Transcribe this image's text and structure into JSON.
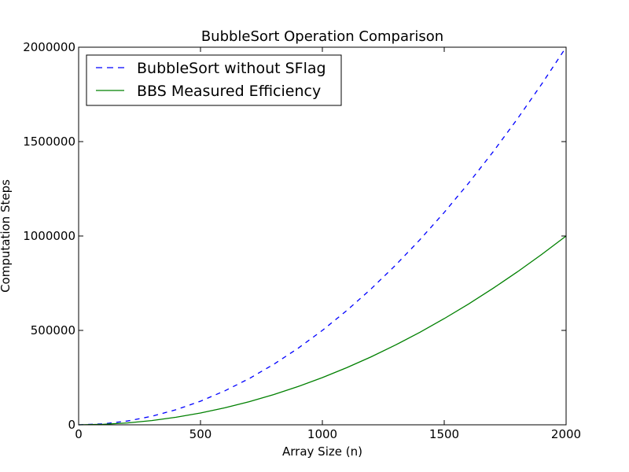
{
  "chart_data": {
    "type": "line",
    "title": "BubbleSort Operation Comparison",
    "xlabel": "Array Size (n)",
    "ylabel": "Computation Steps",
    "xlim": [
      0,
      2000
    ],
    "ylim": [
      0,
      2000000
    ],
    "x_ticks": [
      0,
      500,
      1000,
      1500,
      2000
    ],
    "y_ticks": [
      0,
      500000,
      1000000,
      1500000,
      2000000
    ],
    "x_tick_labels": [
      "0",
      "500",
      "1000",
      "1500",
      "2000"
    ],
    "y_tick_labels": [
      "0",
      "500000",
      "1000000",
      "1500000",
      "2000000"
    ],
    "grid": false,
    "legend_position": "top-left",
    "series": [
      {
        "name": "BubbleSort without SFlag",
        "style": "dashed",
        "color": "#0000ff",
        "x": [
          0,
          100,
          200,
          300,
          400,
          500,
          600,
          700,
          800,
          900,
          1000,
          1100,
          1200,
          1300,
          1400,
          1500,
          1600,
          1700,
          1800,
          1900,
          2000
        ],
        "values": [
          0,
          5000,
          20000,
          45000,
          80000,
          125000,
          180000,
          245000,
          320000,
          405000,
          500000,
          605000,
          720000,
          845000,
          980000,
          1125000,
          1280000,
          1445000,
          1620000,
          1805000,
          2000000
        ]
      },
      {
        "name": "BBS Measured Efficiency",
        "style": "solid",
        "color": "#008000",
        "x": [
          0,
          100,
          200,
          300,
          400,
          500,
          600,
          700,
          800,
          900,
          1000,
          1100,
          1200,
          1300,
          1400,
          1500,
          1600,
          1700,
          1800,
          1900,
          2000
        ],
        "values": [
          0,
          2500,
          10000,
          22500,
          40000,
          62500,
          90000,
          122500,
          160000,
          202500,
          250000,
          302500,
          360000,
          422500,
          490000,
          562500,
          640000,
          722500,
          810000,
          902500,
          1000000
        ]
      }
    ]
  }
}
